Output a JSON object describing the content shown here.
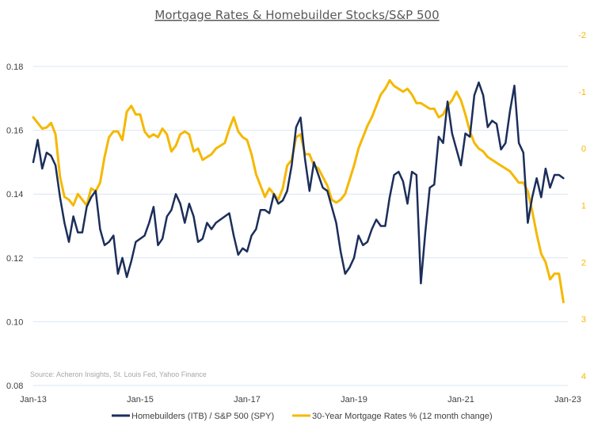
{
  "chart_data": {
    "type": "line",
    "title": "Mortgage Rates & Homebuilder Stocks/S&P 500",
    "source": "Source: Acheron Insights, St. Louis Fed, Yahoo Finance",
    "x_tick_labels": [
      "Jan-13",
      "Jan-15",
      "Jan-17",
      "Jan-19",
      "Jan-21",
      "Jan-23"
    ],
    "x_range": [
      "2013-01",
      "2023-01"
    ],
    "left_axis": {
      "tick_labels": [
        "0.08",
        "0.10",
        "0.12",
        "0.14",
        "0.16",
        "0.18"
      ],
      "tick_values": [
        0.08,
        0.1,
        0.12,
        0.14,
        0.16,
        0.18
      ],
      "ylim": [
        0.08,
        0.18
      ]
    },
    "right_axis": {
      "tick_labels": [
        "-2",
        "-1",
        "0",
        "1",
        "2",
        "3",
        "4"
      ],
      "tick_values": [
        -2,
        -1,
        0,
        1,
        2,
        3,
        4
      ],
      "ylim": [
        -2,
        4
      ],
      "reversed": true
    },
    "grid": true,
    "legend_position": "bottom",
    "series": [
      {
        "name": "Homebuilders (ITB) / S&P 500 (SPY)",
        "axis": "left",
        "color": "#1c2e5a",
        "x": [
          "2013-01",
          "2013-02",
          "2013-03",
          "2013-04",
          "2013-05",
          "2013-06",
          "2013-07",
          "2013-08",
          "2013-09",
          "2013-10",
          "2013-11",
          "2013-12",
          "2014-01",
          "2014-02",
          "2014-03",
          "2014-04",
          "2014-05",
          "2014-06",
          "2014-07",
          "2014-08",
          "2014-09",
          "2014-10",
          "2014-11",
          "2014-12",
          "2015-01",
          "2015-02",
          "2015-03",
          "2015-04",
          "2015-05",
          "2015-06",
          "2015-07",
          "2015-08",
          "2015-09",
          "2015-10",
          "2015-11",
          "2015-12",
          "2016-01",
          "2016-02",
          "2016-03",
          "2016-04",
          "2016-05",
          "2016-06",
          "2016-07",
          "2016-08",
          "2016-09",
          "2016-10",
          "2016-11",
          "2016-12",
          "2017-01",
          "2017-02",
          "2017-03",
          "2017-04",
          "2017-05",
          "2017-06",
          "2017-07",
          "2017-08",
          "2017-09",
          "2017-10",
          "2017-11",
          "2017-12",
          "2018-01",
          "2018-02",
          "2018-03",
          "2018-04",
          "2018-05",
          "2018-06",
          "2018-07",
          "2018-08",
          "2018-09",
          "2018-10",
          "2018-11",
          "2018-12",
          "2019-01",
          "2019-02",
          "2019-03",
          "2019-04",
          "2019-05",
          "2019-06",
          "2019-07",
          "2019-08",
          "2019-09",
          "2019-10",
          "2019-11",
          "2019-12",
          "2020-01",
          "2020-02",
          "2020-03",
          "2020-04",
          "2020-05",
          "2020-06",
          "2020-07",
          "2020-08",
          "2020-09",
          "2020-10",
          "2020-11",
          "2020-12",
          "2021-01",
          "2021-02",
          "2021-03",
          "2021-04",
          "2021-05",
          "2021-06",
          "2021-07",
          "2021-08",
          "2021-09",
          "2021-10",
          "2021-11",
          "2021-12",
          "2022-01",
          "2022-02",
          "2022-03",
          "2022-04",
          "2022-05",
          "2022-06",
          "2022-07",
          "2022-08",
          "2022-09",
          "2022-10",
          "2022-11",
          "2022-12"
        ],
        "values": [
          0.15,
          0.157,
          0.148,
          0.153,
          0.152,
          0.149,
          0.139,
          0.131,
          0.125,
          0.133,
          0.128,
          0.128,
          0.136,
          0.139,
          0.141,
          0.129,
          0.124,
          0.125,
          0.127,
          0.115,
          0.12,
          0.114,
          0.119,
          0.125,
          0.126,
          0.127,
          0.131,
          0.136,
          0.124,
          0.126,
          0.133,
          0.135,
          0.14,
          0.137,
          0.131,
          0.137,
          0.133,
          0.125,
          0.126,
          0.131,
          0.129,
          0.131,
          0.132,
          0.133,
          0.134,
          0.127,
          0.121,
          0.123,
          0.122,
          0.127,
          0.129,
          0.135,
          0.135,
          0.134,
          0.14,
          0.137,
          0.138,
          0.141,
          0.149,
          0.161,
          0.164,
          0.151,
          0.141,
          0.15,
          0.146,
          0.142,
          0.141,
          0.136,
          0.131,
          0.122,
          0.115,
          0.117,
          0.12,
          0.127,
          0.124,
          0.125,
          0.129,
          0.132,
          0.13,
          0.13,
          0.139,
          0.146,
          0.147,
          0.144,
          0.137,
          0.147,
          0.146,
          0.112,
          0.128,
          0.142,
          0.143,
          0.158,
          0.156,
          0.169,
          0.159,
          0.154,
          0.149,
          0.159,
          0.158,
          0.171,
          0.175,
          0.171,
          0.161,
          0.163,
          0.162,
          0.154,
          0.156,
          0.166,
          0.174,
          0.156,
          0.153,
          0.131,
          0.139,
          0.145,
          0.139,
          0.148,
          0.142,
          0.146,
          0.146,
          0.145
        ]
      },
      {
        "name": "30-Year Mortgage Rates % (12 month change)",
        "axis": "right",
        "color": "#f5b800",
        "x": [
          "2013-01",
          "2013-02",
          "2013-03",
          "2013-04",
          "2013-05",
          "2013-06",
          "2013-07",
          "2013-08",
          "2013-09",
          "2013-10",
          "2013-11",
          "2013-12",
          "2014-01",
          "2014-02",
          "2014-03",
          "2014-04",
          "2014-05",
          "2014-06",
          "2014-07",
          "2014-08",
          "2014-09",
          "2014-10",
          "2014-11",
          "2014-12",
          "2015-01",
          "2015-02",
          "2015-03",
          "2015-04",
          "2015-05",
          "2015-06",
          "2015-07",
          "2015-08",
          "2015-09",
          "2015-10",
          "2015-11",
          "2015-12",
          "2016-01",
          "2016-02",
          "2016-03",
          "2016-04",
          "2016-05",
          "2016-06",
          "2016-07",
          "2016-08",
          "2016-09",
          "2016-10",
          "2016-11",
          "2016-12",
          "2017-01",
          "2017-02",
          "2017-03",
          "2017-04",
          "2017-05",
          "2017-06",
          "2017-07",
          "2017-08",
          "2017-09",
          "2017-10",
          "2017-11",
          "2017-12",
          "2018-01",
          "2018-02",
          "2018-03",
          "2018-04",
          "2018-05",
          "2018-06",
          "2018-07",
          "2018-08",
          "2018-09",
          "2018-10",
          "2018-11",
          "2018-12",
          "2019-01",
          "2019-02",
          "2019-03",
          "2019-04",
          "2019-05",
          "2019-06",
          "2019-07",
          "2019-08",
          "2019-09",
          "2019-10",
          "2019-11",
          "2019-12",
          "2020-01",
          "2020-02",
          "2020-03",
          "2020-04",
          "2020-05",
          "2020-06",
          "2020-07",
          "2020-08",
          "2020-09",
          "2020-10",
          "2020-11",
          "2020-12",
          "2021-01",
          "2021-02",
          "2021-03",
          "2021-04",
          "2021-05",
          "2021-06",
          "2021-07",
          "2021-08",
          "2021-09",
          "2021-10",
          "2021-11",
          "2021-12",
          "2022-01",
          "2022-02",
          "2022-03",
          "2022-04",
          "2022-05",
          "2022-06",
          "2022-07",
          "2022-08",
          "2022-09",
          "2022-10",
          "2022-11",
          "2022-12"
        ],
        "values": [
          -0.55,
          -0.45,
          -0.35,
          -0.37,
          -0.45,
          -0.25,
          0.5,
          0.85,
          0.9,
          1.0,
          0.8,
          0.9,
          1.0,
          0.7,
          0.75,
          0.6,
          0.15,
          -0.2,
          -0.3,
          -0.3,
          -0.15,
          -0.65,
          -0.75,
          -0.6,
          -0.6,
          -0.3,
          -0.2,
          -0.25,
          -0.2,
          -0.35,
          -0.25,
          0.05,
          -0.05,
          -0.25,
          -0.3,
          -0.25,
          0.05,
          0.0,
          0.2,
          0.15,
          0.1,
          0.0,
          -0.05,
          -0.1,
          -0.35,
          -0.55,
          -0.3,
          -0.2,
          -0.15,
          0.1,
          0.45,
          0.65,
          0.85,
          0.7,
          0.8,
          0.9,
          0.7,
          0.3,
          0.2,
          -0.2,
          -0.25,
          0.1,
          0.1,
          0.3,
          0.35,
          0.5,
          0.65,
          0.9,
          0.95,
          0.9,
          0.8,
          0.55,
          0.3,
          0.0,
          -0.2,
          -0.4,
          -0.55,
          -0.75,
          -0.95,
          -1.05,
          -1.2,
          -1.1,
          -1.05,
          -1.0,
          -1.05,
          -0.95,
          -0.8,
          -0.8,
          -0.75,
          -0.7,
          -0.7,
          -0.55,
          -0.6,
          -0.75,
          -0.85,
          -1.0,
          -0.85,
          -0.6,
          -0.3,
          -0.1,
          0.0,
          0.05,
          0.15,
          0.2,
          0.25,
          0.3,
          0.35,
          0.4,
          0.5,
          0.6,
          0.6,
          0.75,
          1.1,
          1.5,
          1.85,
          2.0,
          2.3,
          2.2,
          2.2,
          2.7
        ]
      }
    ]
  }
}
